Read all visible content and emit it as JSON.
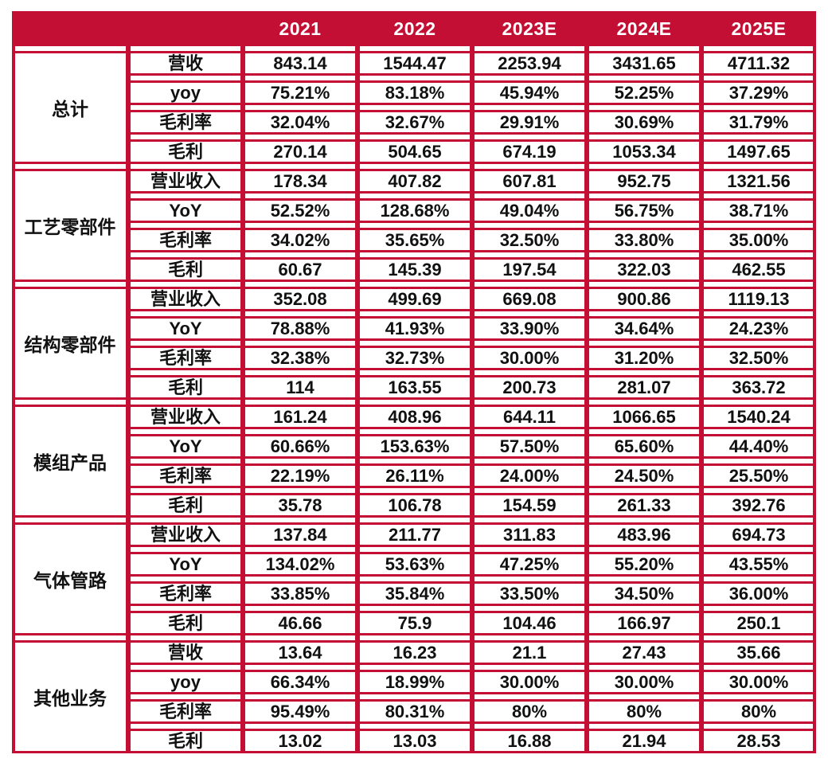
{
  "colors": {
    "accent": "#C40F35",
    "header_text": "#FFFFFF",
    "body_text": "#111111",
    "cell_background": "#FFFFFF"
  },
  "chart_data": {
    "type": "table",
    "columns": [
      "2021",
      "2022",
      "2023E",
      "2024E",
      "2025E"
    ],
    "row_groups": [
      {
        "label": "总计",
        "rows": [
          {
            "metric": "营收",
            "values": [
              "843.14",
              "1544.47",
              "2253.94",
              "3431.65",
              "4711.32"
            ]
          },
          {
            "metric": "yoy",
            "values": [
              "75.21%",
              "83.18%",
              "45.94%",
              "52.25%",
              "37.29%"
            ]
          },
          {
            "metric": "毛利率",
            "values": [
              "32.04%",
              "32.67%",
              "29.91%",
              "30.69%",
              "31.79%"
            ]
          },
          {
            "metric": "毛利",
            "values": [
              "270.14",
              "504.65",
              "674.19",
              "1053.34",
              "1497.65"
            ]
          }
        ]
      },
      {
        "label": "工艺零部件",
        "rows": [
          {
            "metric": "营业收入",
            "values": [
              "178.34",
              "407.82",
              "607.81",
              "952.75",
              "1321.56"
            ]
          },
          {
            "metric": "YoY",
            "values": [
              "52.52%",
              "128.68%",
              "49.04%",
              "56.75%",
              "38.71%"
            ]
          },
          {
            "metric": "毛利率",
            "values": [
              "34.02%",
              "35.65%",
              "32.50%",
              "33.80%",
              "35.00%"
            ]
          },
          {
            "metric": "毛利",
            "values": [
              "60.67",
              "145.39",
              "197.54",
              "322.03",
              "462.55"
            ]
          }
        ]
      },
      {
        "label": "结构零部件",
        "rows": [
          {
            "metric": "营业收入",
            "values": [
              "352.08",
              "499.69",
              "669.08",
              "900.86",
              "1119.13"
            ]
          },
          {
            "metric": "YoY",
            "values": [
              "78.88%",
              "41.93%",
              "33.90%",
              "34.64%",
              "24.23%"
            ]
          },
          {
            "metric": "毛利率",
            "values": [
              "32.38%",
              "32.73%",
              "30.00%",
              "31.20%",
              "32.50%"
            ]
          },
          {
            "metric": "毛利",
            "values": [
              "114",
              "163.55",
              "200.73",
              "281.07",
              "363.72"
            ]
          }
        ]
      },
      {
        "label": "模组产品",
        "rows": [
          {
            "metric": "营业收入",
            "values": [
              "161.24",
              "408.96",
              "644.11",
              "1066.65",
              "1540.24"
            ]
          },
          {
            "metric": "YoY",
            "values": [
              "60.66%",
              "153.63%",
              "57.50%",
              "65.60%",
              "44.40%"
            ]
          },
          {
            "metric": "毛利率",
            "values": [
              "22.19%",
              "26.11%",
              "24.00%",
              "24.50%",
              "25.50%"
            ]
          },
          {
            "metric": "毛利",
            "values": [
              "35.78",
              "106.78",
              "154.59",
              "261.33",
              "392.76"
            ]
          }
        ]
      },
      {
        "label": "气体管路",
        "rows": [
          {
            "metric": "营业收入",
            "values": [
              "137.84",
              "211.77",
              "311.83",
              "483.96",
              "694.73"
            ]
          },
          {
            "metric": "YoY",
            "values": [
              "134.02%",
              "53.63%",
              "47.25%",
              "55.20%",
              "43.55%"
            ]
          },
          {
            "metric": "毛利率",
            "values": [
              "33.85%",
              "35.84%",
              "33.50%",
              "34.50%",
              "36.00%"
            ]
          },
          {
            "metric": "毛利",
            "values": [
              "46.66",
              "75.9",
              "104.46",
              "166.97",
              "250.1"
            ]
          }
        ]
      },
      {
        "label": "其他业务",
        "rows": [
          {
            "metric": "营收",
            "values": [
              "13.64",
              "16.23",
              "21.1",
              "27.43",
              "35.66"
            ]
          },
          {
            "metric": "yoy",
            "values": [
              "66.34%",
              "18.99%",
              "30.00%",
              "30.00%",
              "30.00%"
            ]
          },
          {
            "metric": "毛利率",
            "values": [
              "95.49%",
              "80.31%",
              "80%",
              "80%",
              "80%"
            ]
          },
          {
            "metric": "毛利",
            "values": [
              "13.02",
              "13.03",
              "16.88",
              "21.94",
              "28.53"
            ]
          }
        ]
      }
    ]
  }
}
